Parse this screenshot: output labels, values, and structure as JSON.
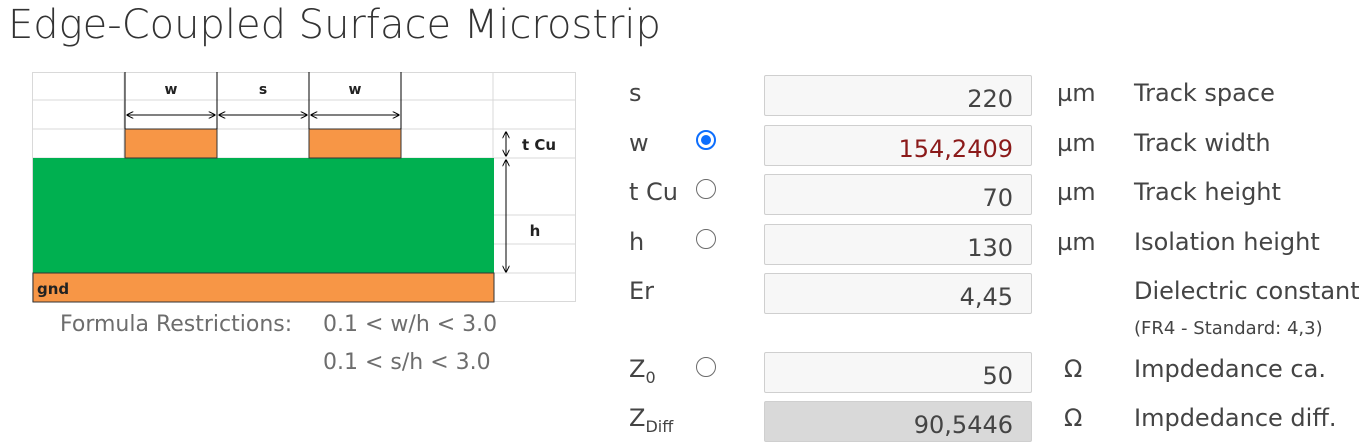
{
  "title": "Edge-Coupled Surface Microstrip",
  "diagram": {
    "label_w1": "w",
    "label_s": "s",
    "label_w2": "w",
    "label_tcu": "t Cu",
    "label_h": "h",
    "label_gnd": "gnd",
    "colors": {
      "copper": "#f79646",
      "dielectric": "#00b050",
      "grid": "#d9d9d9"
    }
  },
  "restrictions": {
    "label": "Formula Restrictions:",
    "rule1": "0.1 < w/h < 3.0",
    "rule2": "0.1 < s/h < 3.0"
  },
  "params": {
    "s": {
      "label": "s",
      "value": "220",
      "unit": "µm",
      "desc": "Track space"
    },
    "w": {
      "label": "w",
      "value": "154,2409",
      "unit": "µm",
      "desc": "Track width",
      "selected": true
    },
    "tcu": {
      "label": "t Cu",
      "value": "70",
      "unit": "µm",
      "desc": "Track height"
    },
    "h": {
      "label": "h",
      "value": "130",
      "unit": "µm",
      "desc": "Isolation height"
    },
    "er": {
      "label": "Er",
      "value": "4,45",
      "desc": "Dielectric constant",
      "note": "(FR4 - Standard: 4,3)"
    },
    "z0": {
      "label_main": "Z",
      "label_sub": "0",
      "value": "50",
      "unit": "Ω",
      "desc": "Impdedance ca."
    },
    "zdiff": {
      "label_main": "Z",
      "label_sub": "Diff",
      "value": "90,5446",
      "unit": "Ω",
      "desc": "Impdedance diff."
    }
  }
}
